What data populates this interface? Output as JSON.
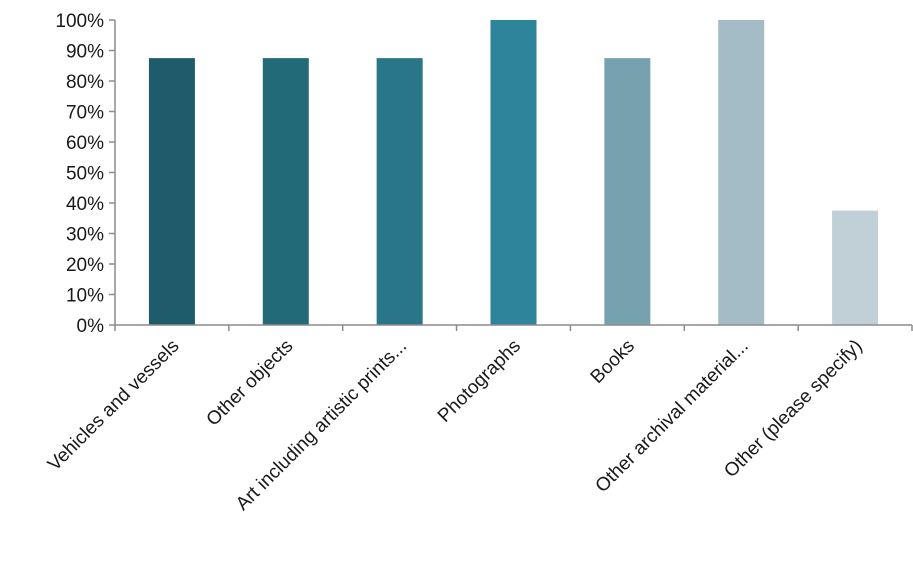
{
  "chart_data": {
    "type": "bar",
    "title": "",
    "xlabel": "",
    "ylabel": "",
    "ylim": [
      0,
      100
    ],
    "grid": false,
    "yticks": [
      "0%",
      "10%",
      "20%",
      "30%",
      "40%",
      "50%",
      "60%",
      "70%",
      "80%",
      "90%",
      "100%"
    ],
    "categories": [
      "Vehicles and vessels",
      "Other objects",
      "Art including artistic prints...",
      "Photographs",
      "Books",
      "Other archival material...",
      "Other (please specify)"
    ],
    "values": [
      87.5,
      87.5,
      87.5,
      100,
      87.5,
      100,
      37.5
    ],
    "colors": [
      "#1f5c6b",
      "#236a78",
      "#2a7689",
      "#2e849a",
      "#76a2b0",
      "#a4bcc6",
      "#c1d0d7"
    ]
  }
}
